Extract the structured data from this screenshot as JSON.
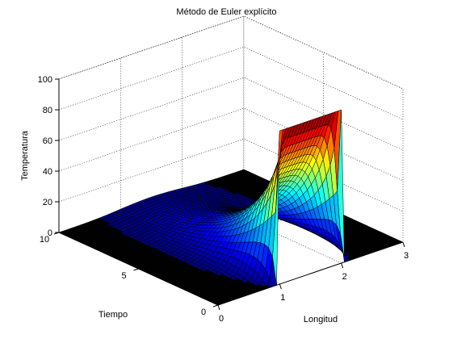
{
  "window": {
    "title": ""
  },
  "chart_data": {
    "type": "surface",
    "title": "Método de Euler explícito",
    "xlabel": "Longitud",
    "ylabel": "Tiempo",
    "zlabel": "Temperatura",
    "x_ticks": [
      "0",
      "1",
      "2",
      "3"
    ],
    "y_ticks": [
      "0",
      "5",
      "10"
    ],
    "z_ticks": [
      "0",
      "20",
      "40",
      "60",
      "80",
      "100"
    ],
    "xlim": [
      0,
      3
    ],
    "ylim": [
      0,
      10
    ],
    "zlim": [
      0,
      100
    ],
    "grid": true,
    "colormap": "jet",
    "initial_condition": {
      "x_start": 1,
      "x_end": 2,
      "value": 100
    },
    "boundary_value": 0,
    "description_points": {
      "x": [
        0,
        0.5,
        1,
        1.25,
        1.5,
        1.75,
        2,
        2.5,
        3
      ],
      "t0_values": [
        0,
        0,
        100,
        100,
        100,
        100,
        100,
        0,
        0
      ]
    },
    "colors": {
      "high": "#800000",
      "mid": "#ffff00",
      "low": "#00007f",
      "zero": "#000000"
    }
  }
}
